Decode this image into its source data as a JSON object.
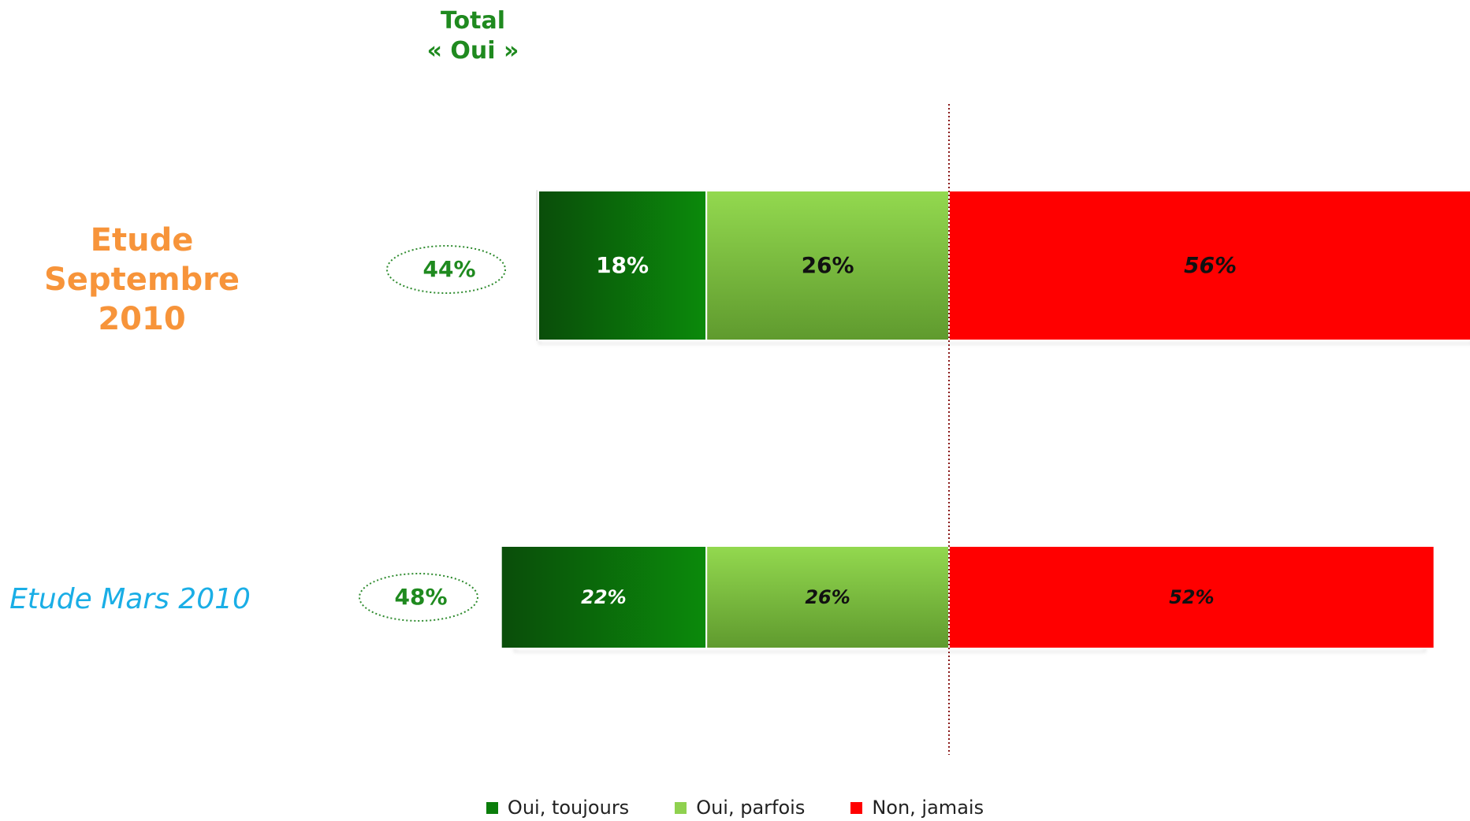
{
  "header": {
    "total_line1": "Total",
    "total_line2": "« Oui »"
  },
  "rows": [
    {
      "label_line1": "Etude",
      "label_line2": "Septembre 2010",
      "total": "44%"
    },
    {
      "label": "Etude Mars 2010",
      "total": "48%"
    }
  ],
  "colors": {
    "oui_toujours": "#0b7d0b",
    "oui_parfois": "#8fd14f",
    "non_jamais": "#ff0000",
    "total_circle": "#2e8b2e"
  },
  "chart_data": {
    "type": "bar",
    "stacked": true,
    "orientation": "horizontal",
    "categories": [
      "Etude Septembre 2010",
      "Etude Mars 2010"
    ],
    "series": [
      {
        "name": "Oui, toujours",
        "values": [
          18,
          22
        ],
        "labels": [
          "18%",
          "22%"
        ]
      },
      {
        "name": "Oui, parfois",
        "values": [
          26,
          26
        ],
        "labels": [
          "26%",
          "26%"
        ]
      },
      {
        "name": "Non, jamais",
        "values": [
          56,
          52
        ],
        "labels": [
          "56%",
          "52%"
        ]
      }
    ],
    "legend_position": "bottom"
  }
}
